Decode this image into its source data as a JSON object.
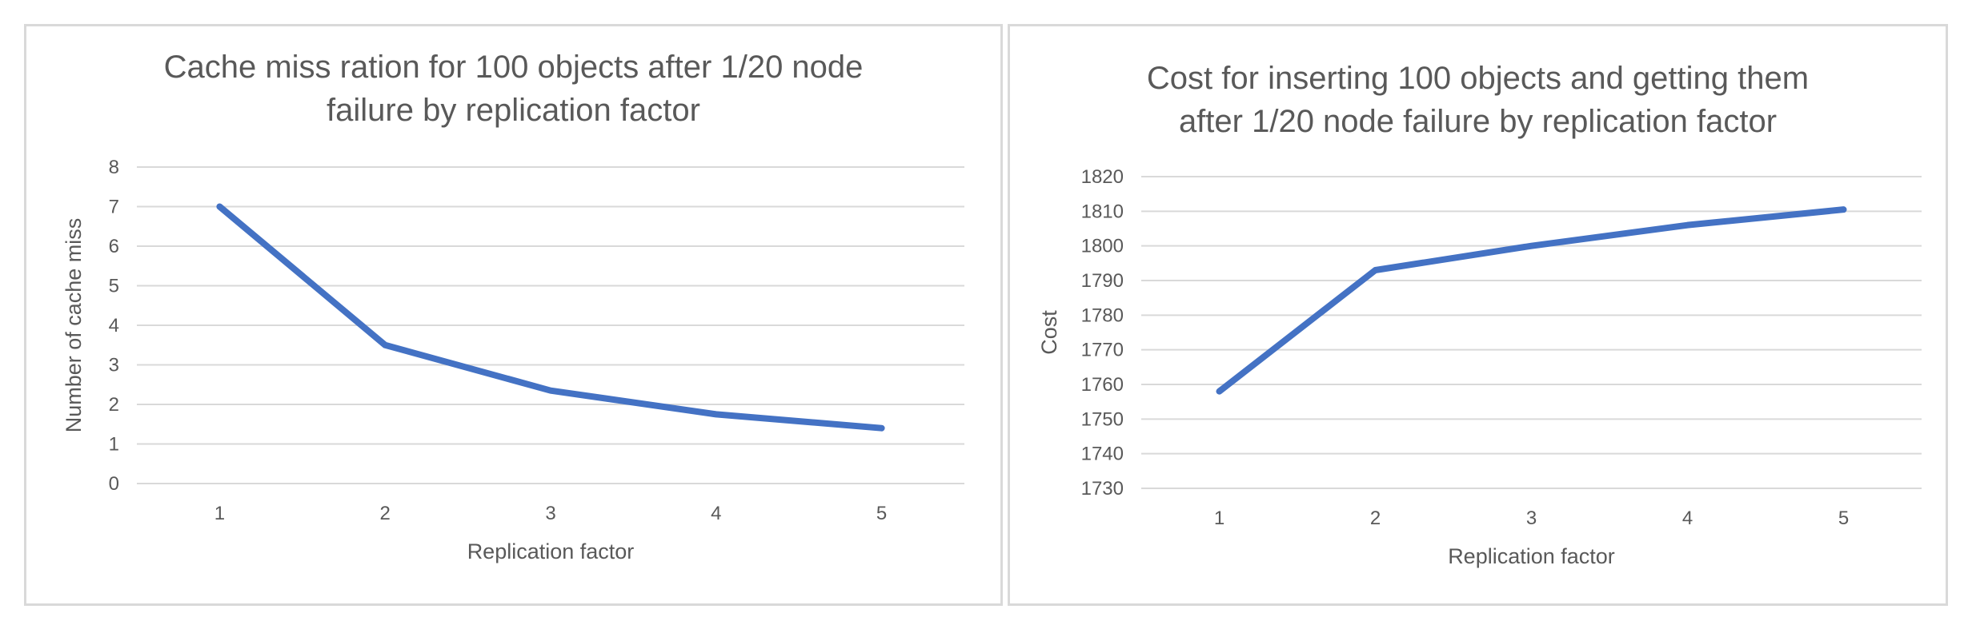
{
  "chart_data": [
    {
      "type": "line",
      "title_lines": [
        "Cache miss ration for 100 objects after 1/20 node",
        "failure by replication factor"
      ],
      "xlabel": "Replication factor",
      "ylabel": "Number of cache miss",
      "x": [
        1,
        2,
        3,
        4,
        5
      ],
      "series": [
        {
          "values": [
            7,
            3.5,
            2.35,
            1.75,
            1.4
          ]
        }
      ],
      "ylim": [
        0,
        8
      ],
      "yticks": [
        0,
        1,
        2,
        3,
        4,
        5,
        6,
        7,
        8
      ],
      "grid": true,
      "legend": "none",
      "color": "#4472c4"
    },
    {
      "type": "line",
      "title_lines": [
        "Cost for inserting 100 objects and getting them",
        "after 1/20 node failure by replication factor"
      ],
      "xlabel": "Replication factor",
      "ylabel": "Cost",
      "x": [
        1,
        2,
        3,
        4,
        5
      ],
      "series": [
        {
          "values": [
            1758,
            1793,
            1800,
            1806,
            1810.5
          ]
        }
      ],
      "ylim": [
        1730,
        1820
      ],
      "yticks": [
        1730,
        1740,
        1750,
        1760,
        1770,
        1780,
        1790,
        1800,
        1810,
        1820
      ],
      "grid": true,
      "legend": "none",
      "color": "#4472c4"
    }
  ]
}
